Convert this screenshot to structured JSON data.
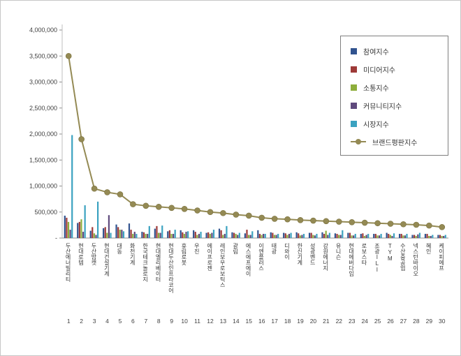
{
  "chart": {
    "y_axis": {
      "ticks": [
        "-",
        "500,000",
        "1,000,000",
        "1,500,000",
        "2,000,000",
        "2,500,000",
        "3,000,000",
        "3,500,000",
        "4,000,000"
      ],
      "min": 0,
      "max": 4000000,
      "step": 500000
    }
  },
  "chart_data": {
    "type": "bar",
    "subtype": "combo-bar-line",
    "title": "",
    "xlabel": "",
    "ylabel": "",
    "ylim": [
      0,
      4000000
    ],
    "grid": false,
    "legend_position": "upper-right",
    "categories": [
      "두산에너빌리티",
      "현대로템",
      "두산밥캣",
      "현대건설기계",
      "대동",
      "화천기계",
      "한국테크놀로지",
      "현대엘리베이터",
      "현대두산인프라코어",
      "휴림로봇",
      "우진",
      "에이프로젠",
      "레인보우로보틱스",
      "광림",
      "에스에프에이",
      "이엔플러스",
      "태광",
      "디와이",
      "한신기계",
      "성광벤드",
      "강원에너지",
      "유니슨",
      "현대에버다임",
      "로보스타",
      "조광ILI",
      "TYM",
      "수산중공업",
      "넥스턴바이오",
      "혜인",
      "케이피에프"
    ],
    "ranks": [
      "1",
      "2",
      "3",
      "4",
      "5",
      "6",
      "7",
      "8",
      "9",
      "10",
      "11",
      "12",
      "13",
      "14",
      "15",
      "16",
      "17",
      "18",
      "19",
      "20",
      "21",
      "22",
      "23",
      "24",
      "25",
      "26",
      "27",
      "28",
      "29",
      "30"
    ],
    "bar_series": [
      {
        "name": "참여지수",
        "color": "#31538F",
        "values": [
          430000,
          290000,
          140000,
          190000,
          260000,
          280000,
          120000,
          180000,
          130000,
          150000,
          150000,
          100000,
          180000,
          110000,
          90000,
          150000,
          110000,
          100000,
          110000,
          100000,
          110000,
          90000,
          100000,
          80000,
          80000,
          100000,
          80000,
          60000,
          80000,
          60000
        ]
      },
      {
        "name": "미디어지수",
        "color": "#9E3A38",
        "values": [
          390000,
          310000,
          210000,
          210000,
          210000,
          160000,
          110000,
          230000,
          150000,
          110000,
          120000,
          110000,
          150000,
          100000,
          160000,
          80000,
          100000,
          90000,
          90000,
          100000,
          80000,
          80000,
          100000,
          90000,
          80000,
          80000,
          80000,
          60000,
          80000,
          60000
        ]
      },
      {
        "name": "소통지수",
        "color": "#8EAE3C",
        "values": [
          310000,
          360000,
          90000,
          100000,
          160000,
          80000,
          80000,
          100000,
          80000,
          80000,
          60000,
          80000,
          60000,
          80000,
          60000,
          60000,
          60000,
          60000,
          50000,
          60000,
          140000,
          60000,
          50000,
          40000,
          50000,
          60000,
          50000,
          40000,
          40000,
          40000
        ]
      },
      {
        "name": "커뮤니티지수",
        "color": "#5F4A7D",
        "values": [
          160000,
          120000,
          60000,
          440000,
          160000,
          120000,
          80000,
          100000,
          80000,
          120000,
          80000,
          100000,
          80000,
          60000,
          60000,
          80000,
          60000,
          80000,
          60000,
          50000,
          60000,
          60000,
          50000,
          60000,
          50000,
          40000,
          50000,
          70000,
          40000,
          40000
        ]
      },
      {
        "name": "시장지수",
        "color": "#3BA2C0",
        "values": [
          1980000,
          630000,
          700000,
          100000,
          130000,
          80000,
          230000,
          240000,
          160000,
          130000,
          120000,
          160000,
          230000,
          100000,
          130000,
          80000,
          80000,
          100000,
          80000,
          80000,
          100000,
          150000,
          80000,
          80000,
          80000,
          90000,
          80000,
          100000,
          60000,
          60000
        ]
      }
    ],
    "line_series": {
      "name": "브랜드평판지수",
      "color": "#948A54",
      "values": [
        3500000,
        1900000,
        950000,
        880000,
        840000,
        650000,
        620000,
        600000,
        580000,
        560000,
        530000,
        500000,
        480000,
        450000,
        430000,
        390000,
        370000,
        360000,
        345000,
        335000,
        325000,
        315000,
        305000,
        295000,
        285000,
        275000,
        265000,
        255000,
        240000,
        210000
      ]
    },
    "legend": [
      "참여지수",
      "미디어지수",
      "소통지수",
      "커뮤니티지수",
      "시장지수",
      "브랜드평판지수"
    ]
  }
}
